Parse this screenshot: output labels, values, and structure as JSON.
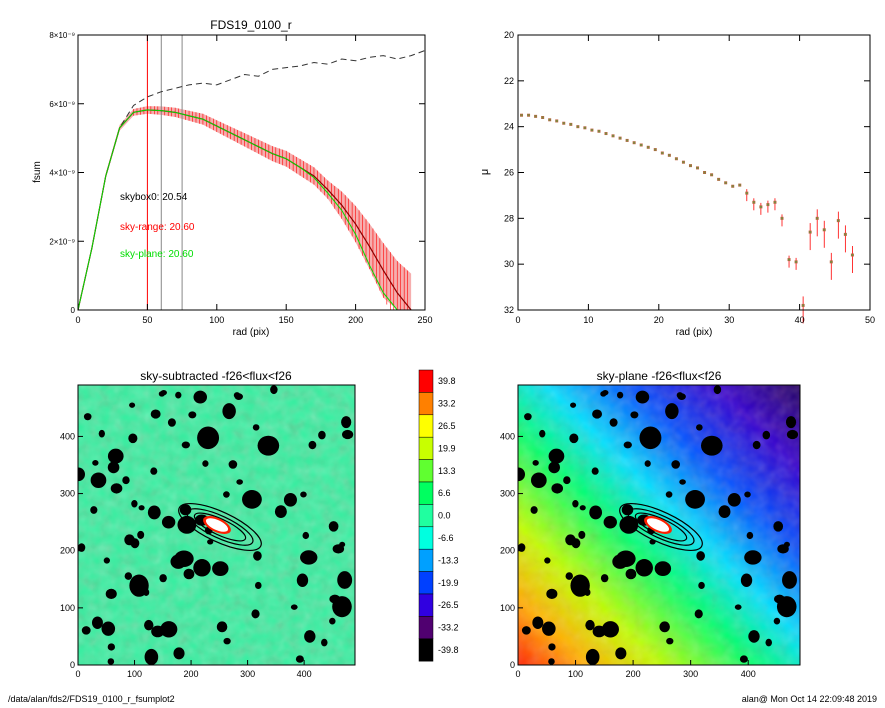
{
  "footer": {
    "left": "/data/alan/fds2/FDS19_0100_r_fsumplot2",
    "right": "alan@  Mon Oct 14 22:09:48 2019"
  },
  "colors": {
    "red": "#ff0000",
    "green": "#00dd00",
    "band": "#f4a0a0",
    "fsum": "#8b0000",
    "dashed": "#333333",
    "grey": "#888888"
  },
  "chart_data": [
    {
      "id": "fsum_plot",
      "type": "line",
      "title": "FDS19_0100_r",
      "xlabel": "rad (pix)",
      "ylabel": "fsum",
      "xlim": [
        0,
        250
      ],
      "ylim": [
        0,
        8e-09
      ],
      "x_ticks": [
        0,
        50,
        100,
        150,
        200,
        250
      ],
      "x_tick_labels": [
        "0",
        "50",
        "100",
        "150",
        "200",
        "250"
      ],
      "y_ticks": [
        0,
        2e-09,
        4e-09,
        6e-09,
        8e-09
      ],
      "y_tick_labels": [
        "0",
        "2×10⁻⁹",
        "4×10⁻⁹",
        "6×10⁻⁹",
        "8×10⁻⁹"
      ],
      "vlines": [
        {
          "x": 50,
          "color": "red"
        },
        {
          "x": 60,
          "color": "grey"
        },
        {
          "x": 75,
          "color": "grey"
        }
      ],
      "annotations": [
        {
          "text": "skybox0: 20.54",
          "color": "black"
        },
        {
          "text": "sky-range: 20.60",
          "color": "red"
        },
        {
          "text": "sky-plane: 20.60",
          "color": "green"
        }
      ],
      "series": [
        {
          "style": "dashed",
          "x": [
            0,
            10,
            20,
            30,
            40,
            50,
            60,
            70,
            80,
            90,
            100,
            110,
            120,
            130,
            140,
            150,
            160,
            170,
            180,
            190,
            200,
            210,
            220,
            230,
            240,
            250
          ],
          "y": [
            0,
            1.8e-09,
            3.9e-09,
            5.3e-09,
            5.95e-09,
            6.2e-09,
            6.35e-09,
            6.45e-09,
            6.55e-09,
            6.6e-09,
            6.55e-09,
            6.7e-09,
            6.85e-09,
            6.8e-09,
            7e-09,
            7.05e-09,
            7.1e-09,
            7.2e-09,
            7.15e-09,
            7.3e-09,
            7.25e-09,
            7.35e-09,
            7.4e-09,
            7.3e-09,
            7.4e-09,
            7.55e-09
          ]
        },
        {
          "style": "solid-dark",
          "x": [
            0,
            10,
            20,
            30,
            40,
            50,
            60,
            70,
            80,
            90,
            100,
            110,
            120,
            130,
            140,
            150,
            160,
            170,
            180,
            190,
            200,
            210,
            220,
            230,
            240
          ],
          "y": [
            0,
            1.8e-09,
            3.9e-09,
            5.3e-09,
            5.75e-09,
            5.82e-09,
            5.8e-09,
            5.75e-09,
            5.65e-09,
            5.55e-09,
            5.35e-09,
            5.15e-09,
            4.95e-09,
            4.75e-09,
            4.55e-09,
            4.4e-09,
            4.15e-09,
            3.9e-09,
            3.5e-09,
            3.05e-09,
            2.5e-09,
            1.85e-09,
            1.15e-09,
            5e-10,
            0
          ]
        },
        {
          "style": "solid-green",
          "x": [
            0,
            10,
            20,
            30,
            40,
            50,
            60,
            70,
            80,
            90,
            100,
            110,
            120,
            130,
            140,
            150,
            160,
            170,
            180,
            190,
            200,
            210,
            220,
            230
          ],
          "y": [
            0,
            1.8e-09,
            3.9e-09,
            5.3e-09,
            5.75e-09,
            5.82e-09,
            5.8e-09,
            5.75e-09,
            5.65e-09,
            5.55e-09,
            5.35e-09,
            5.15e-09,
            4.95e-09,
            4.75e-09,
            4.55e-09,
            4.4e-09,
            4.15e-09,
            3.85e-09,
            3.4e-09,
            2.9e-09,
            2.2e-09,
            1.3e-09,
            5e-10,
            0
          ]
        }
      ]
    },
    {
      "id": "mu_plot",
      "type": "scatter",
      "title": "",
      "xlabel": "rad (pix)",
      "ylabel": "μ",
      "xlim": [
        0,
        50
      ],
      "ylim": [
        32,
        20
      ],
      "x_ticks": [
        0,
        10,
        20,
        30,
        40,
        50
      ],
      "y_ticks": [
        20,
        22,
        24,
        26,
        28,
        30,
        32
      ],
      "points": {
        "x": [
          0.5,
          1.5,
          2.5,
          3.5,
          4.5,
          5.5,
          6.5,
          7.5,
          8.5,
          9.5,
          10.5,
          11.5,
          12.5,
          13.5,
          14.5,
          15.5,
          16.5,
          17.5,
          18.5,
          19.5,
          20.5,
          21.5,
          22.5,
          23.5,
          24.5,
          25.5,
          26.5,
          27.5,
          28.5,
          29.5,
          30.5,
          31.5,
          32.5,
          33.5,
          34.5,
          35.5,
          36.5,
          37.5,
          38.5,
          39.5,
          40.5,
          41.5,
          42.5,
          43.5,
          44.5,
          45.5,
          46.5,
          47.5
        ],
        "y": [
          23.5,
          23.5,
          23.55,
          23.6,
          23.7,
          23.75,
          23.85,
          23.9,
          24.0,
          24.05,
          24.15,
          24.2,
          24.3,
          24.4,
          24.5,
          24.6,
          24.7,
          24.8,
          24.9,
          25.0,
          25.15,
          25.25,
          25.4,
          25.55,
          25.7,
          25.8,
          26.0,
          26.1,
          26.3,
          26.45,
          26.6,
          26.55,
          26.9,
          27.3,
          27.5,
          27.4,
          27.3,
          28.0,
          29.8,
          29.9,
          31.8,
          28.6,
          28.0,
          28.5,
          29.9,
          28.1,
          28.7,
          29.6
        ]
      }
    },
    {
      "id": "sky_subtracted_map",
      "type": "heatmap",
      "title": "sky-subtracted -f26<flux<f26",
      "xlim": [
        0,
        490
      ],
      "ylim": [
        0,
        490
      ],
      "x_ticks": [
        0,
        100,
        200,
        300,
        400
      ],
      "y_ticks": [
        0,
        100,
        200,
        300,
        400
      ]
    },
    {
      "id": "colorbar",
      "type": "table",
      "levels": [
        "39.8",
        "33.2",
        "26.5",
        "19.9",
        "13.3",
        "6.6",
        "0.0",
        "-6.6",
        "-13.3",
        "-19.9",
        "-26.5",
        "-33.2",
        "-39.8"
      ],
      "colors": [
        "#ff0000",
        "#ff8000",
        "#ffff00",
        "#c8ff00",
        "#60ff30",
        "#00ff60",
        "#20ffa0",
        "#00ffe0",
        "#00a0ff",
        "#0040ff",
        "#3000e0",
        "#500070",
        "#000000"
      ]
    },
    {
      "id": "sky_plane_map",
      "type": "heatmap",
      "title": "sky-plane -f26<flux<f26",
      "xlim": [
        0,
        490
      ],
      "ylim": [
        0,
        490
      ],
      "x_ticks": [
        0,
        100,
        200,
        300,
        400
      ],
      "y_ticks": [
        0,
        100,
        200,
        300,
        400
      ]
    }
  ]
}
